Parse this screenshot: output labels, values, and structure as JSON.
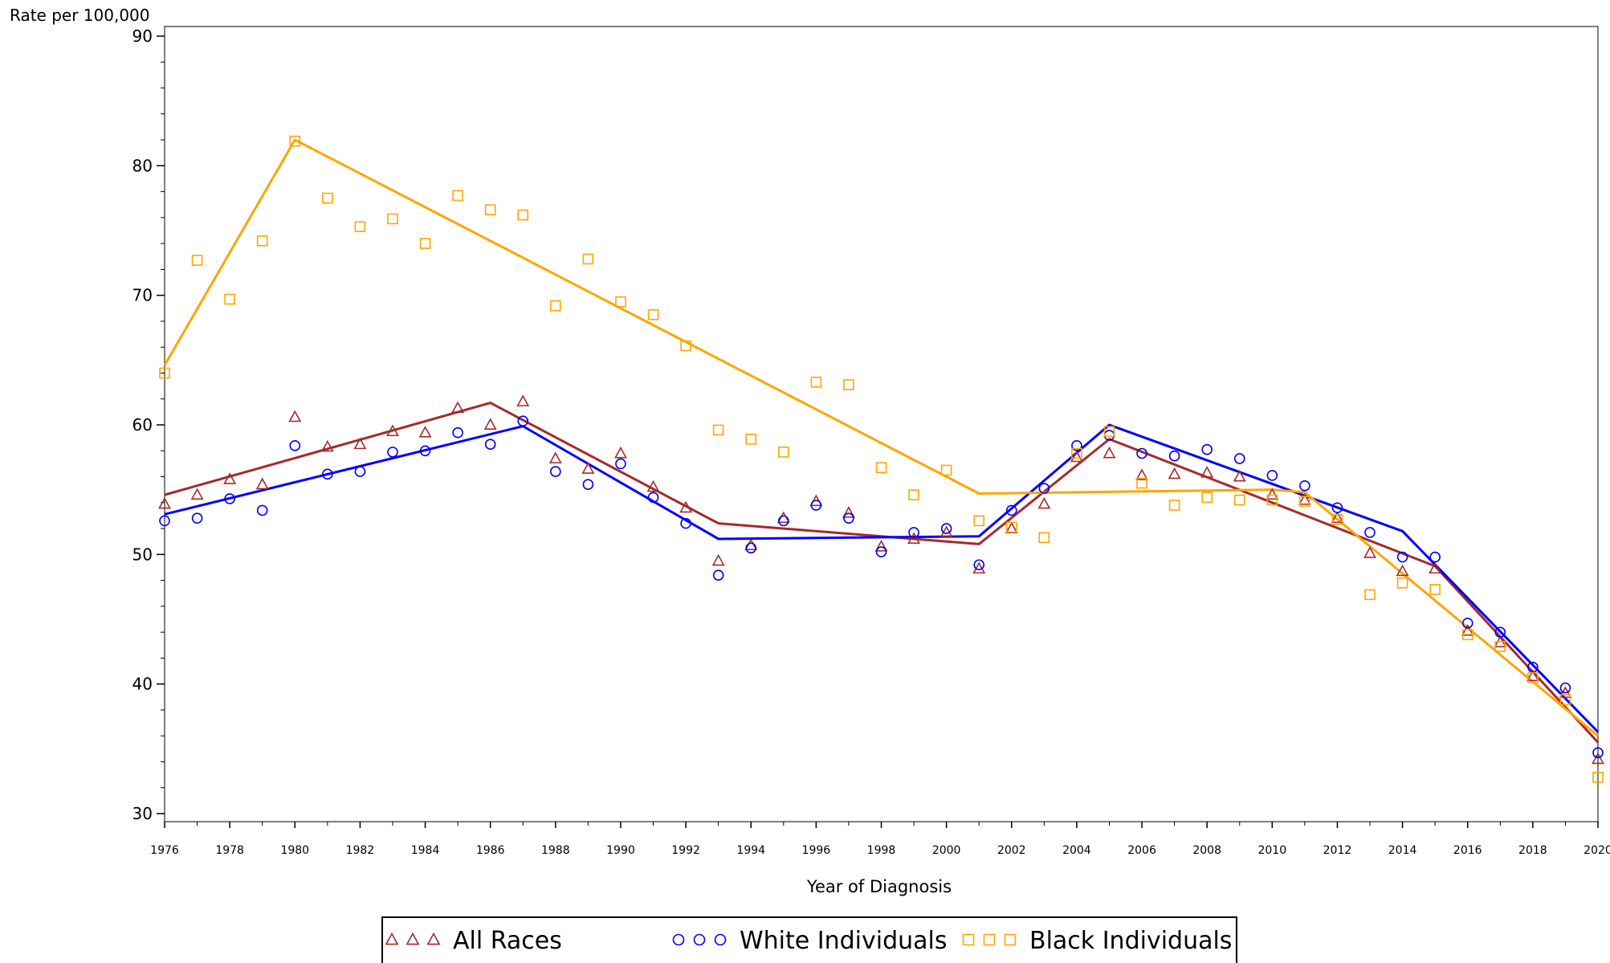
{
  "chart_data": {
    "type": "line",
    "title": "",
    "ylabel": "Rate per 100,000",
    "xlabel": "Year of Diagnosis",
    "xlim": [
      1976,
      2020
    ],
    "ylim": [
      30,
      90
    ],
    "yticks": [
      30,
      40,
      50,
      60,
      70,
      80,
      90
    ],
    "xticks": [
      1976,
      1978,
      1980,
      1982,
      1984,
      1986,
      1988,
      1990,
      1992,
      1994,
      1996,
      1998,
      2000,
      2002,
      2004,
      2006,
      2008,
      2010,
      2012,
      2014,
      2016,
      2018,
      2020
    ],
    "legend_position": "bottom",
    "series": [
      {
        "name": "All Races",
        "marker": "triangle",
        "legend_symbol": "△ △ △",
        "color": "#a52a2a",
        "observed": {
          "x": [
            1976,
            1977,
            1978,
            1979,
            1980,
            1981,
            1982,
            1983,
            1984,
            1985,
            1986,
            1987,
            1988,
            1989,
            1990,
            1991,
            1992,
            1993,
            1994,
            1995,
            1996,
            1997,
            1998,
            1999,
            2000,
            2001,
            2002,
            2003,
            2004,
            2005,
            2006,
            2007,
            2008,
            2009,
            2010,
            2011,
            2012,
            2013,
            2014,
            2015,
            2016,
            2017,
            2018,
            2019,
            2020
          ],
          "y": [
            53.9,
            54.6,
            55.8,
            55.4,
            60.6,
            58.3,
            58.5,
            59.5,
            59.4,
            61.3,
            60.0,
            61.8,
            57.4,
            56.6,
            57.8,
            55.2,
            53.6,
            49.5,
            50.7,
            52.8,
            54.1,
            53.2,
            50.6,
            51.2,
            51.7,
            48.9,
            52.0,
            53.9,
            57.5,
            57.8,
            56.1,
            56.2,
            56.3,
            56.0,
            54.6,
            54.2,
            52.8,
            50.1,
            48.7,
            48.9,
            44.1,
            43.2,
            40.6,
            39.3,
            34.2
          ]
        },
        "trend": {
          "x": [
            1976,
            1986,
            1993,
            2001,
            2005,
            2015,
            2020
          ],
          "y": [
            54.6,
            61.7,
            52.4,
            50.8,
            58.9,
            49.1,
            35.5
          ]
        }
      },
      {
        "name": "White Individuals",
        "marker": "circle",
        "legend_symbol": "○ ○ ○",
        "color": "#0000ff",
        "observed": {
          "x": [
            1976,
            1977,
            1978,
            1979,
            1980,
            1981,
            1982,
            1983,
            1984,
            1985,
            1986,
            1987,
            1988,
            1989,
            1990,
            1991,
            1992,
            1993,
            1994,
            1995,
            1996,
            1997,
            1998,
            1999,
            2000,
            2001,
            2002,
            2003,
            2004,
            2005,
            2006,
            2007,
            2008,
            2009,
            2010,
            2011,
            2012,
            2013,
            2014,
            2015,
            2016,
            2017,
            2018,
            2019,
            2020
          ],
          "y": [
            52.6,
            52.8,
            54.3,
            53.4,
            58.4,
            56.2,
            56.4,
            57.9,
            58.0,
            59.4,
            58.5,
            60.3,
            56.4,
            55.4,
            57.0,
            54.4,
            52.4,
            48.4,
            50.5,
            52.6,
            53.8,
            52.8,
            50.2,
            51.7,
            52.0,
            49.2,
            53.4,
            55.1,
            58.4,
            59.2,
            57.8,
            57.6,
            58.1,
            57.4,
            56.1,
            55.3,
            53.6,
            51.7,
            49.8,
            49.8,
            44.7,
            44.0,
            41.3,
            39.7,
            34.7
          ]
        },
        "trend": {
          "x": [
            1976,
            1987,
            1993,
            2001,
            2005,
            2014,
            2020
          ],
          "y": [
            53.1,
            59.9,
            51.2,
            51.4,
            60.0,
            51.8,
            36.3
          ]
        }
      },
      {
        "name": "Black Individuals",
        "marker": "square",
        "legend_symbol": "□ □ □",
        "color": "#ffa500",
        "observed": {
          "x": [
            1976,
            1977,
            1978,
            1979,
            1980,
            1981,
            1982,
            1983,
            1984,
            1985,
            1986,
            1987,
            1988,
            1989,
            1990,
            1991,
            1992,
            1993,
            1994,
            1995,
            1996,
            1997,
            1998,
            1999,
            2000,
            2001,
            2002,
            2003,
            2004,
            2005,
            2006,
            2007,
            2008,
            2009,
            2010,
            2011,
            2012,
            2013,
            2014,
            2015,
            2016,
            2017,
            2018,
            2019,
            2020
          ],
          "y": [
            64.0,
            72.7,
            69.7,
            74.2,
            81.9,
            77.5,
            75.3,
            75.9,
            74.0,
            77.7,
            76.6,
            76.2,
            69.2,
            72.8,
            69.5,
            68.5,
            66.1,
            59.6,
            58.9,
            57.9,
            63.3,
            63.1,
            56.7,
            54.6,
            56.5,
            52.6,
            52.1,
            51.3,
            57.8,
            59.5,
            55.5,
            53.8,
            54.4,
            54.2,
            54.2,
            54.1,
            52.7,
            46.9,
            47.8,
            47.3,
            43.8,
            42.9,
            40.5,
            38.8,
            32.8
          ]
        },
        "trend": {
          "x": [
            1976,
            1980,
            2001,
            2010,
            2011,
            2020
          ],
          "y": [
            64.6,
            82.0,
            54.7,
            55.0,
            54.8,
            36.0
          ]
        }
      }
    ]
  }
}
